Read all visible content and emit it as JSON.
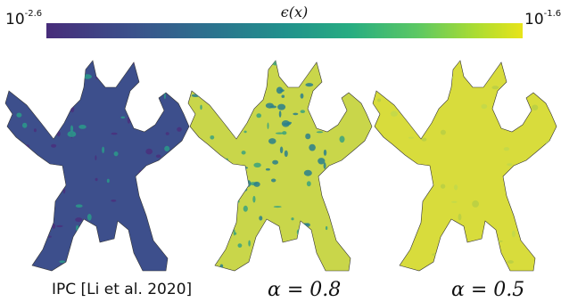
{
  "colorbar": {
    "min_base": "10",
    "min_exp": "-2.6",
    "max_base": "10",
    "max_exp": "-1.6",
    "label": "ϵ(x)",
    "colors": [
      "#472c7a",
      "#3b518b",
      "#2c718e",
      "#21918c",
      "#27ad81",
      "#5cc863",
      "#aadc32",
      "#e8e419"
    ]
  },
  "panels": [
    {
      "caption": "IPC [Li et al. 2020]",
      "base_color": "#3d4f8c",
      "spot_color": "#2a9a8a"
    },
    {
      "caption": "α = 0.8",
      "base_color": "#c9d64a",
      "spot_color": "#2a7f8c"
    },
    {
      "caption": "α = 0.5",
      "base_color": "#d8dc3c",
      "spot_color": "#b9cf44"
    }
  ]
}
